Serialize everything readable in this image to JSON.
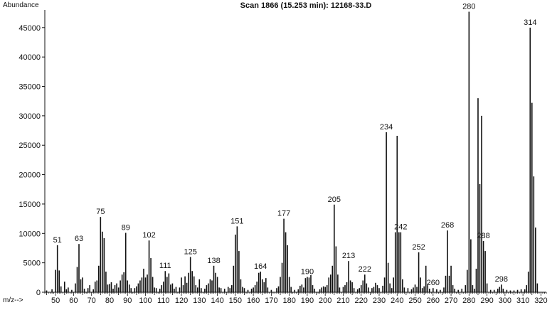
{
  "chart_data": {
    "type": "bar",
    "title": "Scan 1866 (15.253 min): 12168-33.D",
    "ylabel": "Abundance",
    "xlabel": "m/z-->",
    "xlim": [
      44,
      323
    ],
    "ylim": [
      0,
      48000
    ],
    "grid": false,
    "x_ticks": [
      50,
      60,
      70,
      80,
      90,
      100,
      110,
      120,
      130,
      140,
      150,
      160,
      170,
      180,
      190,
      200,
      210,
      220,
      230,
      240,
      250,
      260,
      270,
      280,
      290,
      300,
      310,
      320
    ],
    "y_ticks": [
      0,
      5000,
      10000,
      15000,
      20000,
      25000,
      30000,
      35000,
      40000,
      45000
    ],
    "y_tick_labels": [
      "0",
      "5000",
      "10000",
      "15000",
      "20000",
      "25000",
      "30000",
      "35000",
      "40000",
      "45000"
    ],
    "peak_labels": [
      {
        "mz": 51,
        "text": "51"
      },
      {
        "mz": 63,
        "text": "63"
      },
      {
        "mz": 75,
        "text": "75"
      },
      {
        "mz": 89,
        "text": "89"
      },
      {
        "mz": 102,
        "text": "102"
      },
      {
        "mz": 111,
        "text": "111"
      },
      {
        "mz": 125,
        "text": "125"
      },
      {
        "mz": 138,
        "text": "138"
      },
      {
        "mz": 151,
        "text": "151"
      },
      {
        "mz": 164,
        "text": "164"
      },
      {
        "mz": 177,
        "text": "177"
      },
      {
        "mz": 190,
        "text": "190"
      },
      {
        "mz": 205,
        "text": "205"
      },
      {
        "mz": 213,
        "text": "213"
      },
      {
        "mz": 222,
        "text": "222"
      },
      {
        "mz": 234,
        "text": "234"
      },
      {
        "mz": 242,
        "text": "242"
      },
      {
        "mz": 252,
        "text": "252"
      },
      {
        "mz": 260,
        "text": "260"
      },
      {
        "mz": 268,
        "text": "268"
      },
      {
        "mz": 280,
        "text": "280"
      },
      {
        "mz": 288,
        "text": "288"
      },
      {
        "mz": 298,
        "text": "298"
      },
      {
        "mz": 314,
        "text": "314"
      }
    ],
    "peaks": [
      {
        "mz": 45,
        "y": 300
      },
      {
        "mz": 48,
        "y": 500
      },
      {
        "mz": 50,
        "y": 3800
      },
      {
        "mz": 51,
        "y": 8000
      },
      {
        "mz": 52,
        "y": 3700
      },
      {
        "mz": 53,
        "y": 1000
      },
      {
        "mz": 55,
        "y": 1800
      },
      {
        "mz": 56,
        "y": 500
      },
      {
        "mz": 57,
        "y": 800
      },
      {
        "mz": 59,
        "y": 400
      },
      {
        "mz": 61,
        "y": 1500
      },
      {
        "mz": 62,
        "y": 4300
      },
      {
        "mz": 63,
        "y": 8200
      },
      {
        "mz": 64,
        "y": 2200
      },
      {
        "mz": 65,
        "y": 2500
      },
      {
        "mz": 66,
        "y": 600
      },
      {
        "mz": 68,
        "y": 700
      },
      {
        "mz": 69,
        "y": 1200
      },
      {
        "mz": 71,
        "y": 500
      },
      {
        "mz": 72,
        "y": 1800
      },
      {
        "mz": 73,
        "y": 2000
      },
      {
        "mz": 74,
        "y": 4500
      },
      {
        "mz": 75,
        "y": 12800
      },
      {
        "mz": 76,
        "y": 10300
      },
      {
        "mz": 77,
        "y": 9200
      },
      {
        "mz": 78,
        "y": 3500
      },
      {
        "mz": 79,
        "y": 1300
      },
      {
        "mz": 80,
        "y": 1400
      },
      {
        "mz": 81,
        "y": 1700
      },
      {
        "mz": 82,
        "y": 600
      },
      {
        "mz": 83,
        "y": 1200
      },
      {
        "mz": 84,
        "y": 1500
      },
      {
        "mz": 85,
        "y": 800
      },
      {
        "mz": 86,
        "y": 2000
      },
      {
        "mz": 87,
        "y": 3000
      },
      {
        "mz": 88,
        "y": 3400
      },
      {
        "mz": 89,
        "y": 10100
      },
      {
        "mz": 90,
        "y": 2000
      },
      {
        "mz": 91,
        "y": 1300
      },
      {
        "mz": 92,
        "y": 700
      },
      {
        "mz": 94,
        "y": 700
      },
      {
        "mz": 95,
        "y": 1000
      },
      {
        "mz": 96,
        "y": 1500
      },
      {
        "mz": 97,
        "y": 2000
      },
      {
        "mz": 98,
        "y": 2500
      },
      {
        "mz": 99,
        "y": 4000
      },
      {
        "mz": 100,
        "y": 2500
      },
      {
        "mz": 101,
        "y": 3000
      },
      {
        "mz": 102,
        "y": 8800
      },
      {
        "mz": 103,
        "y": 5800
      },
      {
        "mz": 104,
        "y": 2600
      },
      {
        "mz": 105,
        "y": 800
      },
      {
        "mz": 106,
        "y": 700
      },
      {
        "mz": 108,
        "y": 600
      },
      {
        "mz": 109,
        "y": 1200
      },
      {
        "mz": 110,
        "y": 1800
      },
      {
        "mz": 111,
        "y": 3600
      },
      {
        "mz": 112,
        "y": 2600
      },
      {
        "mz": 113,
        "y": 3200
      },
      {
        "mz": 114,
        "y": 1300
      },
      {
        "mz": 115,
        "y": 1500
      },
      {
        "mz": 116,
        "y": 600
      },
      {
        "mz": 117,
        "y": 900
      },
      {
        "mz": 119,
        "y": 800
      },
      {
        "mz": 120,
        "y": 2500
      },
      {
        "mz": 121,
        "y": 1200
      },
      {
        "mz": 122,
        "y": 2700
      },
      {
        "mz": 123,
        "y": 1600
      },
      {
        "mz": 124,
        "y": 3300
      },
      {
        "mz": 125,
        "y": 6000
      },
      {
        "mz": 126,
        "y": 3600
      },
      {
        "mz": 127,
        "y": 2700
      },
      {
        "mz": 128,
        "y": 1200
      },
      {
        "mz": 129,
        "y": 800
      },
      {
        "mz": 130,
        "y": 2200
      },
      {
        "mz": 131,
        "y": 700
      },
      {
        "mz": 133,
        "y": 600
      },
      {
        "mz": 134,
        "y": 1200
      },
      {
        "mz": 135,
        "y": 1500
      },
      {
        "mz": 136,
        "y": 2200
      },
      {
        "mz": 137,
        "y": 2000
      },
      {
        "mz": 138,
        "y": 4500
      },
      {
        "mz": 139,
        "y": 3300
      },
      {
        "mz": 140,
        "y": 2600
      },
      {
        "mz": 141,
        "y": 800
      },
      {
        "mz": 142,
        "y": 700
      },
      {
        "mz": 144,
        "y": 600
      },
      {
        "mz": 146,
        "y": 900
      },
      {
        "mz": 147,
        "y": 700
      },
      {
        "mz": 148,
        "y": 1200
      },
      {
        "mz": 149,
        "y": 4500
      },
      {
        "mz": 150,
        "y": 9800
      },
      {
        "mz": 151,
        "y": 11200
      },
      {
        "mz": 152,
        "y": 7000
      },
      {
        "mz": 153,
        "y": 2200
      },
      {
        "mz": 154,
        "y": 900
      },
      {
        "mz": 155,
        "y": 700
      },
      {
        "mz": 157,
        "y": 400
      },
      {
        "mz": 159,
        "y": 600
      },
      {
        "mz": 160,
        "y": 800
      },
      {
        "mz": 161,
        "y": 1200
      },
      {
        "mz": 162,
        "y": 1800
      },
      {
        "mz": 163,
        "y": 3300
      },
      {
        "mz": 164,
        "y": 3500
      },
      {
        "mz": 165,
        "y": 2200
      },
      {
        "mz": 166,
        "y": 1700
      },
      {
        "mz": 167,
        "y": 2400
      },
      {
        "mz": 168,
        "y": 800
      },
      {
        "mz": 170,
        "y": 400
      },
      {
        "mz": 173,
        "y": 700
      },
      {
        "mz": 174,
        "y": 1000
      },
      {
        "mz": 175,
        "y": 2600
      },
      {
        "mz": 176,
        "y": 5000
      },
      {
        "mz": 177,
        "y": 12500
      },
      {
        "mz": 178,
        "y": 10200
      },
      {
        "mz": 179,
        "y": 8000
      },
      {
        "mz": 180,
        "y": 2600
      },
      {
        "mz": 181,
        "y": 900
      },
      {
        "mz": 183,
        "y": 400
      },
      {
        "mz": 185,
        "y": 500
      },
      {
        "mz": 186,
        "y": 1100
      },
      {
        "mz": 187,
        "y": 1300
      },
      {
        "mz": 188,
        "y": 800
      },
      {
        "mz": 189,
        "y": 2400
      },
      {
        "mz": 190,
        "y": 2600
      },
      {
        "mz": 191,
        "y": 2500
      },
      {
        "mz": 192,
        "y": 2900
      },
      {
        "mz": 193,
        "y": 1200
      },
      {
        "mz": 194,
        "y": 600
      },
      {
        "mz": 197,
        "y": 500
      },
      {
        "mz": 198,
        "y": 800
      },
      {
        "mz": 199,
        "y": 1000
      },
      {
        "mz": 200,
        "y": 900
      },
      {
        "mz": 201,
        "y": 1200
      },
      {
        "mz": 202,
        "y": 2500
      },
      {
        "mz": 203,
        "y": 3000
      },
      {
        "mz": 204,
        "y": 4500
      },
      {
        "mz": 205,
        "y": 14900
      },
      {
        "mz": 206,
        "y": 7800
      },
      {
        "mz": 207,
        "y": 3000
      },
      {
        "mz": 208,
        "y": 800
      },
      {
        "mz": 210,
        "y": 900
      },
      {
        "mz": 211,
        "y": 1200
      },
      {
        "mz": 212,
        "y": 1700
      },
      {
        "mz": 213,
        "y": 5300
      },
      {
        "mz": 214,
        "y": 2000
      },
      {
        "mz": 215,
        "y": 1700
      },
      {
        "mz": 216,
        "y": 700
      },
      {
        "mz": 218,
        "y": 500
      },
      {
        "mz": 219,
        "y": 700
      },
      {
        "mz": 220,
        "y": 1200
      },
      {
        "mz": 221,
        "y": 2000
      },
      {
        "mz": 222,
        "y": 3000
      },
      {
        "mz": 223,
        "y": 1500
      },
      {
        "mz": 224,
        "y": 800
      },
      {
        "mz": 226,
        "y": 700
      },
      {
        "mz": 227,
        "y": 900
      },
      {
        "mz": 228,
        "y": 1600
      },
      {
        "mz": 229,
        "y": 1200
      },
      {
        "mz": 230,
        "y": 700
      },
      {
        "mz": 232,
        "y": 1100
      },
      {
        "mz": 233,
        "y": 2500
      },
      {
        "mz": 234,
        "y": 27200
      },
      {
        "mz": 235,
        "y": 5000
      },
      {
        "mz": 236,
        "y": 1500
      },
      {
        "mz": 237,
        "y": 700
      },
      {
        "mz": 238,
        "y": 2500
      },
      {
        "mz": 239,
        "y": 10200
      },
      {
        "mz": 240,
        "y": 26600
      },
      {
        "mz": 241,
        "y": 10200
      },
      {
        "mz": 242,
        "y": 10200
      },
      {
        "mz": 243,
        "y": 2200
      },
      {
        "mz": 244,
        "y": 800
      },
      {
        "mz": 246,
        "y": 700
      },
      {
        "mz": 248,
        "y": 500
      },
      {
        "mz": 249,
        "y": 800
      },
      {
        "mz": 250,
        "y": 1300
      },
      {
        "mz": 251,
        "y": 900
      },
      {
        "mz": 252,
        "y": 6800
      },
      {
        "mz": 253,
        "y": 2500
      },
      {
        "mz": 254,
        "y": 700
      },
      {
        "mz": 255,
        "y": 1000
      },
      {
        "mz": 256,
        "y": 4500
      },
      {
        "mz": 257,
        "y": 1200
      },
      {
        "mz": 258,
        "y": 600
      },
      {
        "mz": 260,
        "y": 700
      },
      {
        "mz": 262,
        "y": 500
      },
      {
        "mz": 264,
        "y": 400
      },
      {
        "mz": 266,
        "y": 800
      },
      {
        "mz": 267,
        "y": 2800
      },
      {
        "mz": 268,
        "y": 10500
      },
      {
        "mz": 269,
        "y": 2800
      },
      {
        "mz": 270,
        "y": 4500
      },
      {
        "mz": 271,
        "y": 1200
      },
      {
        "mz": 272,
        "y": 600
      },
      {
        "mz": 274,
        "y": 400
      },
      {
        "mz": 276,
        "y": 600
      },
      {
        "mz": 278,
        "y": 1200
      },
      {
        "mz": 279,
        "y": 3800
      },
      {
        "mz": 280,
        "y": 47700
      },
      {
        "mz": 281,
        "y": 9000
      },
      {
        "mz": 282,
        "y": 1200
      },
      {
        "mz": 283,
        "y": 600
      },
      {
        "mz": 284,
        "y": 4000
      },
      {
        "mz": 285,
        "y": 33000
      },
      {
        "mz": 286,
        "y": 18400
      },
      {
        "mz": 287,
        "y": 30000
      },
      {
        "mz": 288,
        "y": 8700
      },
      {
        "mz": 289,
        "y": 7000
      },
      {
        "mz": 290,
        "y": 1500
      },
      {
        "mz": 292,
        "y": 400
      },
      {
        "mz": 294,
        "y": 400
      },
      {
        "mz": 296,
        "y": 600
      },
      {
        "mz": 297,
        "y": 900
      },
      {
        "mz": 298,
        "y": 1300
      },
      {
        "mz": 299,
        "y": 600
      },
      {
        "mz": 301,
        "y": 400
      },
      {
        "mz": 303,
        "y": 300
      },
      {
        "mz": 305,
        "y": 300
      },
      {
        "mz": 307,
        "y": 400
      },
      {
        "mz": 309,
        "y": 500
      },
      {
        "mz": 311,
        "y": 500
      },
      {
        "mz": 312,
        "y": 1200
      },
      {
        "mz": 313,
        "y": 3500
      },
      {
        "mz": 314,
        "y": 45000
      },
      {
        "mz": 315,
        "y": 32200
      },
      {
        "mz": 316,
        "y": 19700
      },
      {
        "mz": 317,
        "y": 11000
      },
      {
        "mz": 318,
        "y": 1500
      }
    ]
  }
}
